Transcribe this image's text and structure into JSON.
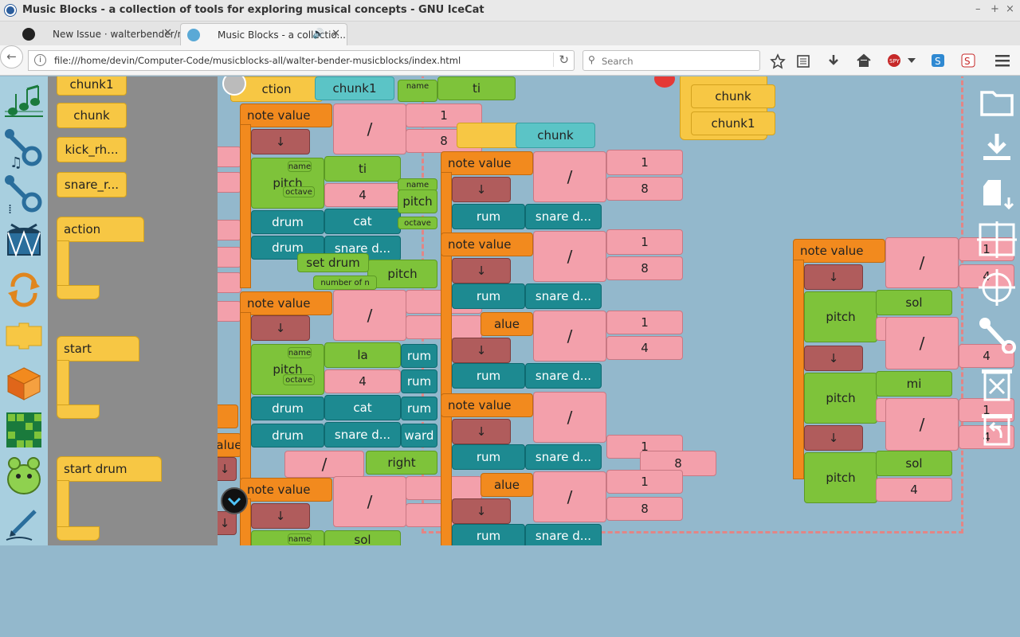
{
  "window": {
    "title": "Music Blocks - a collection of tools for exploring musical concepts - GNU IceCat",
    "controls": [
      "–",
      "+",
      "×"
    ]
  },
  "tabs": [
    {
      "label": "New Issue · walterbender/m...",
      "close": "✕"
    },
    {
      "label": "Music Blocks - a collectio...",
      "close": "✕",
      "audio": "🔊"
    }
  ],
  "newtab_label": "+",
  "nav": {
    "back": "←",
    "info": "i",
    "url": "file:///home/devin/Computer-Code/musicblocks-all/walter-bender-musicblocks/index.html",
    "reload": "↻",
    "search_placeholder": "Search",
    "search_icon": "⚲"
  },
  "toolbar_icons": [
    "bookmark-star-icon",
    "reading-list-icon",
    "download-icon",
    "home-icon",
    "spy-icon",
    "menu-dropdown-icon",
    "share-icon",
    "privacy-icon",
    "hamburger-menu-icon"
  ],
  "palette_icons": [
    "rhythm-palette-icon",
    "tone-palette-icon",
    "pitch-palette-icon",
    "drum-palette-icon",
    "flow-palette-icon",
    "action-palette-icon",
    "boxes-palette-icon",
    "widgets-palette-icon",
    "mouse-palette-icon",
    "pen-palette-icon"
  ],
  "flyout": {
    "chunk1": "chunk1",
    "chunk": "chunk",
    "kick": "kick_rh...",
    "snare": "snare_r...",
    "action": "action",
    "start": "start",
    "start_drum": "start drum"
  },
  "blocks": {
    "note_value": "note value",
    "divide": "/",
    "down": "↓",
    "name": "name",
    "pitch": "pitch",
    "octave": "octave",
    "drum": "drum",
    "chunk1": "chunk1",
    "chunk": "chunk",
    "action_partial": "ction",
    "ti": "ti",
    "la": "la",
    "sol": "sol",
    "mi": "mi",
    "cat": "cat",
    "snare": "snare d...",
    "snare_short": "snare d...",
    "one": "1",
    "four": "4",
    "eight": "8",
    "rum": "rum",
    "ward": "ward",
    "right": "right",
    "set_drum": "set drum",
    "number_of": "number of n",
    "value_partial": "value",
    "alue": "alue"
  },
  "right_toolbar": [
    "open-folder-icon",
    "save-download-icon",
    "save-artwork-icon",
    "grid-icon",
    "center-crosshair-icon",
    "settings-wrench-icon",
    "clear-trash-icon",
    "restore-trash-icon"
  ]
}
